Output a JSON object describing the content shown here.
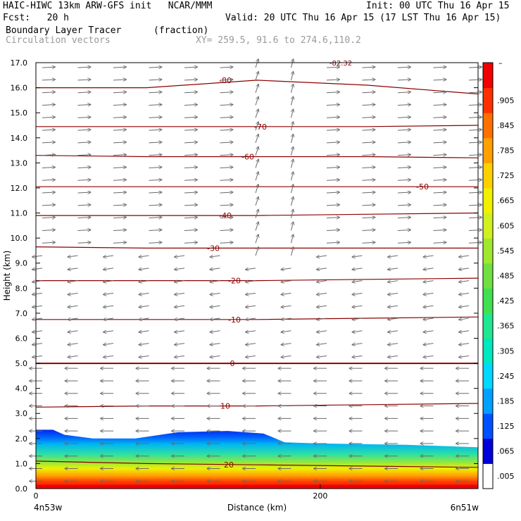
{
  "header": {
    "title_left": "HAIC-HIWC 13km ARW-GFS init   NCAR/MMM",
    "init": "Init: 00 UTC Thu 16 Apr 15",
    "fcst": "Fcst:   20 h",
    "valid": "Valid: 20 UTC Thu 16 Apr 15 (17 LST Thu 16 Apr 15)",
    "field": "Boundary Layer Tracer",
    "units": "(fraction)",
    "vectors": "Circulation vectors",
    "xy": "XY= 259.5, 91.6 to 274.6,110.2"
  },
  "chart_data": {
    "type": "heatmap",
    "title": "Boundary Layer Tracer",
    "units": "(fraction)",
    "xlabel": "Distance (km)",
    "ylabel": "Height (km)",
    "x_start_label": "4n53w",
    "x_end_label": "6n51w",
    "xlim": [
      0,
      311
    ],
    "ylim": [
      0.0,
      17.0
    ],
    "x_ticks": [
      0,
      200
    ],
    "y_ticks": [
      "0.0",
      "1.0",
      "2.0",
      "3.0",
      "4.0",
      "5.0",
      "6.0",
      "7.0",
      "8.0",
      "9.0",
      "10.0",
      "11.0",
      "12.0",
      "13.0",
      "14.0",
      "15.0",
      "16.0",
      "17.0"
    ],
    "colorbar": {
      "labels": [
        ".005",
        ".065",
        ".125",
        ".185",
        ".245",
        ".305",
        ".365",
        ".425",
        ".485",
        ".545",
        ".605",
        ".665",
        ".725",
        ".785",
        ".845",
        ".905"
      ],
      "colors": [
        "#ffffff",
        "#0000d8",
        "#0050ff",
        "#00a0ff",
        "#00d8ff",
        "#00e8c0",
        "#20e890",
        "#40e050",
        "#70e040",
        "#a0e830",
        "#d0f020",
        "#f0f000",
        "#ffd000",
        "#ffa000",
        "#ff7000",
        "#ff3000",
        "#f00000"
      ]
    },
    "tracer_top_km": [
      [
        0,
        2.35
      ],
      [
        12,
        2.35
      ],
      [
        20,
        2.15
      ],
      [
        40,
        2.0
      ],
      [
        70,
        2.0
      ],
      [
        100,
        2.25
      ],
      [
        135,
        2.3
      ],
      [
        160,
        2.2
      ],
      [
        175,
        1.85
      ],
      [
        200,
        1.8
      ],
      [
        260,
        1.75
      ],
      [
        311,
        1.65
      ]
    ],
    "temperature_contours": [
      {
        "value": 20,
        "label": "20",
        "heights_km": [
          1.1,
          1.0,
          0.95,
          0.9,
          0.85
        ]
      },
      {
        "value": 10,
        "label": "10",
        "heights_km": [
          3.25,
          3.3,
          3.3,
          3.35,
          3.4
        ]
      },
      {
        "value": 0,
        "label": "0",
        "heights_km": [
          5.0,
          5.0,
          5.0,
          5.0,
          5.0
        ]
      },
      {
        "value": -10,
        "label": "-10",
        "heights_km": [
          6.75,
          6.75,
          6.75,
          6.8,
          6.85
        ]
      },
      {
        "value": -20,
        "label": "-20",
        "heights_km": [
          8.3,
          8.3,
          8.3,
          8.35,
          8.4
        ]
      },
      {
        "value": -30,
        "label": "-30",
        "heights_km": [
          9.65,
          9.6,
          9.6,
          9.6,
          9.6
        ]
      },
      {
        "value": -40,
        "label": "-40",
        "heights_km": [
          10.9,
          10.9,
          10.9,
          10.95,
          11.0
        ]
      },
      {
        "value": -50,
        "label": "-50",
        "heights_km": [
          12.05,
          12.05,
          12.05,
          12.05,
          12.05
        ]
      },
      {
        "value": -60,
        "label": "-60",
        "heights_km": [
          13.3,
          13.25,
          13.25,
          13.25,
          13.2
        ]
      },
      {
        "value": -70,
        "label": "-70",
        "heights_km": [
          14.45,
          14.45,
          14.45,
          14.45,
          14.5
        ]
      },
      {
        "value": -80,
        "label": "-80",
        "heights_km": [
          16.0,
          16.0,
          16.3,
          16.1,
          15.75
        ]
      }
    ],
    "top_label": "-82.32"
  },
  "colors": {
    "contour": "#8b0000",
    "vector": "#6a6a6a",
    "frame": "#000000"
  }
}
